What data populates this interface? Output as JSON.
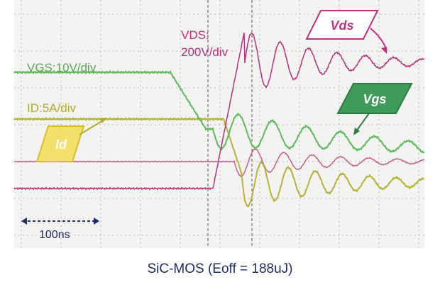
{
  "scope": {
    "vgs_label": "VGS:10V/div",
    "id_label": "ID:5A/div",
    "vds_label": [
      "VDS:",
      "200V/div"
    ],
    "time_scale": "100ns",
    "tags": {
      "vds": "Vds",
      "vgs": "Vgs",
      "id": "Id"
    }
  },
  "caption": "SiC-MOS (Eoff = 188uJ)"
}
